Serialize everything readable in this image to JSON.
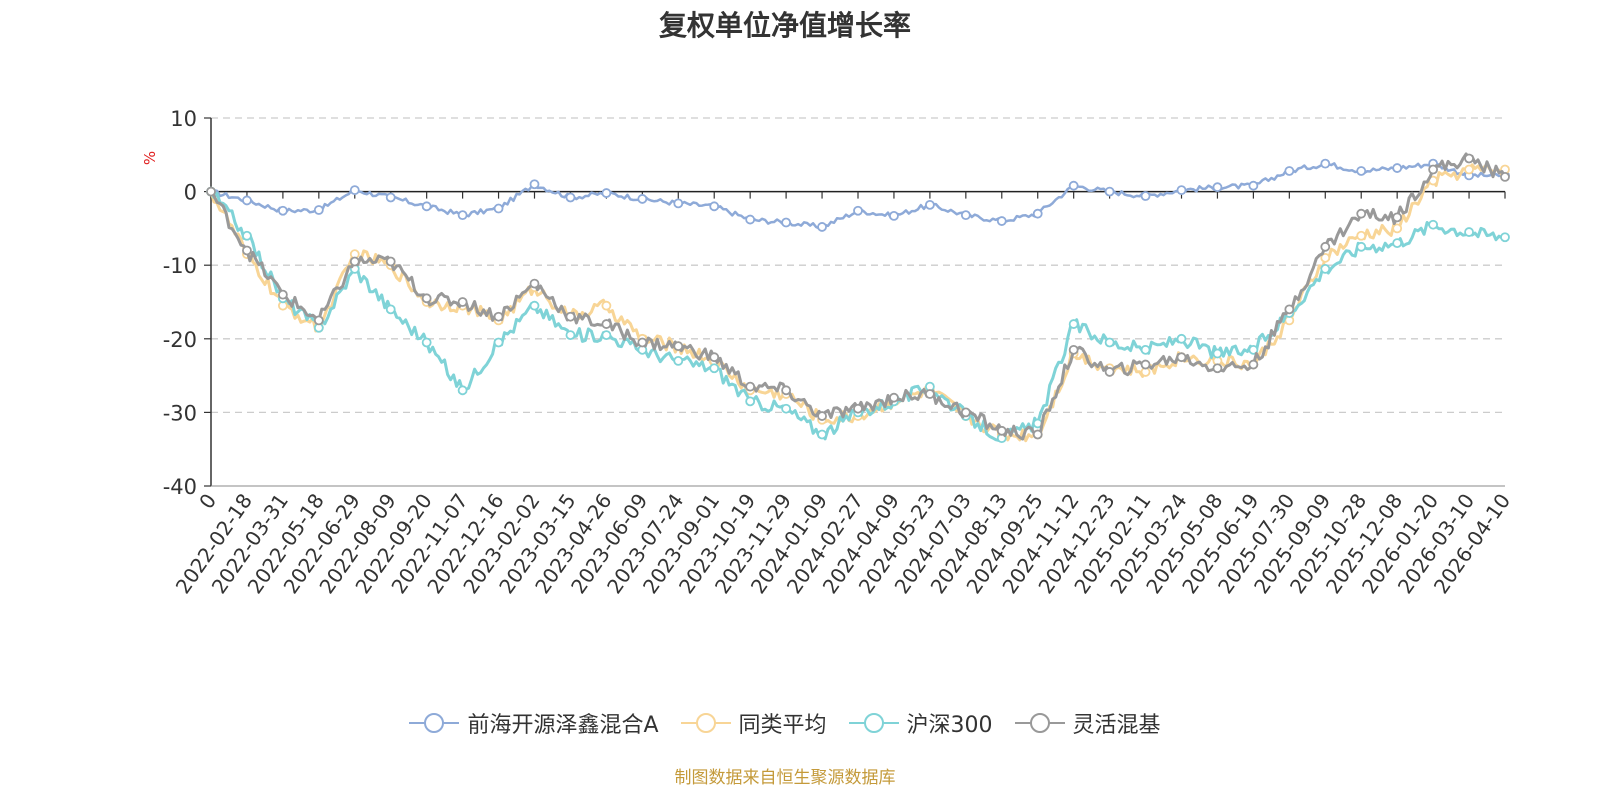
{
  "chart_data": {
    "type": "line",
    "title": "复权单位净值增长率",
    "ylabel": "%",
    "xlabel": "",
    "ylim": [
      -40,
      10
    ],
    "yticks": [
      10,
      0,
      -10,
      -20,
      -30,
      -40
    ],
    "x_tick_labels": [
      "0",
      "2022-02-18",
      "2022-03-31",
      "2022-05-18",
      "2022-06-29",
      "2022-08-09",
      "2022-09-20",
      "2022-11-07",
      "2022-12-16",
      "2023-02-02",
      "2023-03-15",
      "2023-04-26",
      "2023-06-09",
      "2023-07-24",
      "2023-09-01",
      "2023-10-19",
      "2023-11-29",
      "2024-01-09",
      "2024-02-27",
      "2024-04-09",
      "2024-05-23",
      "2024-07-03",
      "2024-08-13",
      "2024-09-25",
      "2024-11-12",
      "2024-12-23",
      "2025-02-11",
      "2025-03-24",
      "2025-05-08",
      "2025-06-19",
      "2025-07-30",
      "2025-09-09",
      "2025-10-28",
      "2025-12-08",
      "2026-01-20",
      "2026-03-10",
      "2026-04-10"
    ],
    "grid": true,
    "legend_position": "bottom",
    "series": [
      {
        "name": "前海开源泽鑫混合A",
        "color": "#8eaad8",
        "values": [
          0,
          -1.2,
          -2.6,
          -2.5,
          0.2,
          -0.8,
          -2.0,
          -3.2,
          -2.3,
          1.0,
          -0.8,
          -0.2,
          -1.0,
          -1.6,
          -2.0,
          -3.8,
          -4.2,
          -4.8,
          -2.6,
          -3.3,
          -1.8,
          -3.2,
          -4.0,
          -3.0,
          0.8,
          0.0,
          -0.6,
          0.2,
          0.6,
          0.8,
          2.8,
          3.8,
          2.8,
          3.2,
          3.8,
          2.2,
          2.2
        ]
      },
      {
        "name": "同类平均",
        "color": "#f8d596",
        "values": [
          0,
          -8.5,
          -15.5,
          -18.5,
          -8.5,
          -10.0,
          -15.0,
          -15.5,
          -17.5,
          -13.0,
          -17.0,
          -15.5,
          -20.0,
          -21.0,
          -23.0,
          -27.0,
          -27.5,
          -31.0,
          -30.5,
          -28.5,
          -27.0,
          -30.5,
          -33.0,
          -33.0,
          -22.0,
          -24.0,
          -24.5,
          -22.5,
          -23.0,
          -23.5,
          -17.5,
          -9.0,
          -6.0,
          -5.0,
          1.5,
          3.0,
          3.0
        ]
      },
      {
        "name": "沪深300",
        "color": "#7fd3d7",
        "values": [
          0,
          -6.0,
          -14.5,
          -18.5,
          -10.5,
          -16.0,
          -20.5,
          -27.0,
          -20.5,
          -15.5,
          -19.5,
          -19.5,
          -21.5,
          -23.0,
          -24.0,
          -28.5,
          -29.5,
          -33.0,
          -30.0,
          -28.5,
          -26.5,
          -30.5,
          -33.5,
          -31.5,
          -18.0,
          -20.5,
          -21.5,
          -20.0,
          -22.0,
          -21.5,
          -16.5,
          -10.5,
          -7.5,
          -7.0,
          -4.5,
          -5.5,
          -6.2
        ]
      },
      {
        "name": "灵活混基",
        "color": "#999999",
        "values": [
          0,
          -8.0,
          -14.0,
          -17.5,
          -9.5,
          -9.5,
          -14.5,
          -15.0,
          -17.0,
          -12.5,
          -17.0,
          -18.0,
          -20.5,
          -21.0,
          -22.5,
          -26.5,
          -27.0,
          -30.5,
          -29.5,
          -28.0,
          -27.5,
          -30.0,
          -32.5,
          -33.0,
          -21.5,
          -24.5,
          -23.5,
          -22.5,
          -24.0,
          -23.5,
          -16.0,
          -7.5,
          -3.0,
          -3.5,
          3.0,
          4.5,
          2.0
        ]
      }
    ]
  },
  "source_note": "制图数据来自恒生聚源数据库"
}
